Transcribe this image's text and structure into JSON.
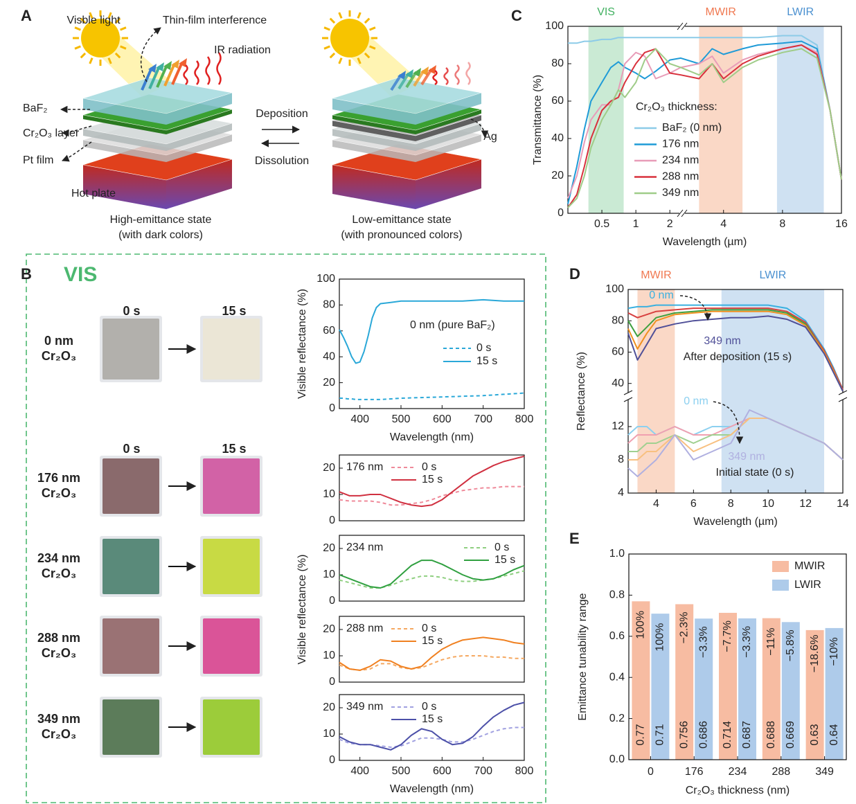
{
  "panel_labels": [
    "A",
    "B",
    "C",
    "D",
    "E"
  ],
  "diagram": {
    "visible_light": "Visble light",
    "thin_film": "Thin-film interference",
    "ir": "IR radiation",
    "baf2": "BaF₂",
    "cr2o3": "Cr₂O₃ layer",
    "pt": "Pt film",
    "hot_plate": "Hot plate",
    "deposition": "Deposition",
    "dissolution": "Dissolution",
    "ag": "Ag",
    "high_state": "High-emittance state",
    "high_note": "(with dark colors)",
    "low_state": "Low-emittance state",
    "low_note": "(with pronounced colors)"
  },
  "photos": {
    "title": "VIS",
    "times": [
      "0 s",
      "15 s"
    ],
    "samples": [
      {
        "thickness": "0 nm",
        "material": "Cr₂O₃"
      },
      {
        "thickness": "176 nm",
        "material": "Cr₂O₃"
      },
      {
        "thickness": "234 nm",
        "material": "Cr₂O₃"
      },
      {
        "thickness": "288 nm",
        "material": "Cr₂O₃"
      },
      {
        "thickness": "349 nm",
        "material": "Cr₂O₃"
      }
    ]
  },
  "panel_b_ylabel": "Visible reflectance (%)",
  "chart_data": [
    {
      "type": "line",
      "xscale": "log",
      "xlabel": "Wavelength (µm)",
      "ylabel": "Transmittance (%)",
      "xlim": [
        0.25,
        16
      ],
      "x_break": 2.5,
      "xticks": [
        0.5,
        1,
        2,
        4,
        8,
        16
      ],
      "ylim": [
        0,
        100
      ],
      "yticks": [
        0,
        20,
        40,
        60,
        80,
        100
      ],
      "bands": [
        {
          "label": "VIS",
          "range": [
            0.38,
            0.78
          ],
          "color": "#9fd8b0",
          "label_color": "#40b060"
        },
        {
          "label": "MWIR",
          "range": [
            3,
            5
          ],
          "color": "#f6b898",
          "label_color": "#f07850"
        },
        {
          "label": "LWIR",
          "range": [
            7.5,
            13
          ],
          "color": "#a8c8e8",
          "label_color": "#4a90d0"
        }
      ],
      "legend_title": "Cr₂O₃ thickness:",
      "x": [
        0.25,
        0.3,
        0.35,
        0.4,
        0.5,
        0.6,
        0.7,
        0.8,
        1,
        1.2,
        1.5,
        2,
        2.5,
        3,
        3.5,
        4,
        5,
        6,
        8,
        10,
        12,
        14,
        16
      ],
      "series": [
        {
          "name": "BaF₂ (0 nm)",
          "color": "#8ccbe8",
          "values": [
            91,
            91,
            92,
            92,
            93,
            93,
            94,
            94,
            94,
            94,
            94,
            94,
            94,
            94,
            94,
            94,
            94,
            94,
            95,
            95,
            90,
            55,
            18
          ]
        },
        {
          "name": "176 nm",
          "color": "#1f9bd7",
          "values": [
            5,
            25,
            45,
            60,
            70,
            78,
            81,
            78,
            75,
            72,
            76,
            82,
            83,
            80,
            88,
            85,
            88,
            90,
            91,
            92,
            88,
            55,
            18
          ]
        },
        {
          "name": "234 nm",
          "color": "#e89cb8",
          "values": [
            8,
            20,
            38,
            50,
            58,
            58,
            66,
            80,
            86,
            84,
            72,
            75,
            78,
            80,
            84,
            75,
            82,
            85,
            88,
            90,
            86,
            55,
            18
          ]
        },
        {
          "name": "288 nm",
          "color": "#d8303c",
          "values": [
            3,
            10,
            25,
            40,
            55,
            60,
            62,
            70,
            80,
            86,
            88,
            75,
            74,
            72,
            80,
            72,
            80,
            84,
            88,
            90,
            85,
            55,
            18
          ]
        },
        {
          "name": "349 nm",
          "color": "#9fcc88",
          "values": [
            3,
            8,
            20,
            35,
            50,
            58,
            66,
            62,
            70,
            82,
            88,
            80,
            78,
            74,
            80,
            70,
            78,
            82,
            86,
            88,
            83,
            55,
            18
          ]
        }
      ]
    },
    {
      "type": "line",
      "xlabel": "Wavelength (µm)",
      "ylabel": "Reflectance (%)",
      "xlim": [
        2.5,
        14
      ],
      "xticks": [
        4,
        6,
        8,
        10,
        12,
        14
      ],
      "ylim": [
        4,
        100
      ],
      "y_break": [
        15,
        35
      ],
      "yticks": [
        4,
        8,
        12,
        40,
        60,
        80,
        100
      ],
      "bands": [
        {
          "label": "MWIR",
          "range": [
            3,
            5
          ],
          "color": "#f6b898",
          "label_color": "#f07850"
        },
        {
          "label": "LWIR",
          "range": [
            7.5,
            13
          ],
          "color": "#a8c8e8",
          "label_color": "#4a90d0"
        }
      ],
      "annotations": [
        "0 nm",
        "349 nm",
        "After deposition (15 s)",
        "0 nm",
        "349 nm",
        "Initial state (0 s)"
      ],
      "x": [
        2.5,
        3,
        3.5,
        4,
        5,
        6,
        7,
        8,
        9,
        10,
        11,
        12,
        13,
        13.5,
        14
      ],
      "series": [
        {
          "color": "#3ab0e0",
          "values": [
            88,
            89,
            89,
            90,
            90,
            90,
            90,
            90,
            90,
            90,
            88,
            80,
            62,
            50,
            36
          ]
        },
        {
          "color": "#d84040",
          "values": [
            85,
            82,
            84,
            86,
            87,
            88,
            88,
            88,
            88,
            88,
            86,
            79,
            61,
            49,
            36
          ]
        },
        {
          "color": "#40a040",
          "values": [
            80,
            70,
            76,
            82,
            85,
            86,
            87,
            87,
            87,
            87,
            85,
            78,
            60,
            48,
            35
          ]
        },
        {
          "color": "#f09020",
          "values": [
            75,
            62,
            72,
            80,
            84,
            85,
            86,
            86,
            86,
            86,
            84,
            77,
            60,
            48,
            35
          ]
        },
        {
          "color": "#505098",
          "values": [
            72,
            55,
            65,
            75,
            78,
            80,
            81,
            82,
            82,
            83,
            81,
            76,
            59,
            47,
            35
          ]
        },
        {
          "color": "#8cd0f0",
          "values": [
            11,
            12,
            12,
            11,
            12,
            11,
            12,
            12,
            13,
            13,
            12,
            11,
            10,
            9,
            8
          ]
        },
        {
          "color": "#f0a0b0",
          "values": [
            10,
            11,
            11,
            11,
            12,
            11,
            11,
            12,
            13,
            13,
            12,
            11,
            10,
            9,
            8
          ]
        },
        {
          "color": "#a0d090",
          "values": [
            9,
            9,
            10,
            10,
            11,
            10,
            11,
            11,
            13,
            13,
            12,
            11,
            10,
            9,
            8
          ]
        },
        {
          "color": "#f8c080",
          "values": [
            8,
            8,
            9,
            9,
            11,
            9,
            10,
            11,
            13,
            13,
            12,
            11,
            10,
            9,
            8
          ]
        },
        {
          "color": "#b0b0e0",
          "values": [
            7,
            6,
            7,
            8,
            11,
            8,
            9,
            10,
            14,
            13,
            12,
            11,
            10,
            9,
            8
          ]
        }
      ]
    },
    {
      "type": "line",
      "xlabel": "Wavelength (nm)",
      "ylabel": "Visible reflectance (%)",
      "xlim": [
        350,
        800
      ],
      "xticks": [
        400,
        500,
        600,
        700,
        800
      ],
      "ylim": [
        0,
        100
      ],
      "yticks": [
        0,
        20,
        40,
        60,
        80,
        100
      ],
      "legend_title": "0 nm (pure BaF₂)",
      "x": [
        350,
        360,
        370,
        380,
        390,
        400,
        410,
        420,
        430,
        440,
        450,
        475,
        500,
        550,
        600,
        650,
        700,
        750,
        800
      ],
      "series": [
        {
          "name": "0 s",
          "color": "#2aa8d8",
          "dashed": true,
          "values": [
            8,
            8,
            7.5,
            7.5,
            7,
            7,
            7,
            7,
            7,
            7,
            7,
            7.5,
            8,
            8.5,
            9,
            9.5,
            10,
            11,
            12
          ]
        },
        {
          "name": "15 s",
          "color": "#2aa8d8",
          "values": [
            61,
            55,
            48,
            40,
            35,
            36,
            44,
            56,
            70,
            78,
            81,
            82,
            83,
            83,
            83,
            83,
            84,
            83,
            83
          ]
        }
      ]
    },
    {
      "type": "line",
      "label": "176 nm",
      "xlim": [
        350,
        800
      ],
      "ylim": [
        0,
        25
      ],
      "yticks": [
        0,
        10,
        20
      ],
      "x": [
        350,
        375,
        400,
        425,
        450,
        475,
        500,
        525,
        550,
        575,
        600,
        625,
        650,
        675,
        700,
        725,
        750,
        775,
        800
      ],
      "series": [
        {
          "name": "0 s",
          "color": "#ef8a9a",
          "dashed": true,
          "values": [
            8,
            7.5,
            7.5,
            7.5,
            7,
            6,
            6,
            6.5,
            7,
            8,
            9.5,
            10.5,
            11.5,
            12,
            12.5,
            12.5,
            13,
            13,
            13
          ]
        },
        {
          "name": "15 s",
          "color": "#d03040",
          "values": [
            11,
            9.5,
            9.5,
            10,
            10,
            8.5,
            7,
            6,
            5.5,
            6,
            8,
            11,
            14,
            17,
            19,
            21,
            22.5,
            23.5,
            24.5
          ]
        }
      ]
    },
    {
      "type": "line",
      "label": "234 nm",
      "xlim": [
        350,
        800
      ],
      "ylim": [
        0,
        25
      ],
      "yticks": [
        0,
        10,
        20
      ],
      "x": [
        350,
        375,
        400,
        425,
        450,
        475,
        500,
        525,
        550,
        575,
        600,
        625,
        650,
        675,
        700,
        725,
        750,
        775,
        800
      ],
      "series": [
        {
          "name": "0 s",
          "color": "#8fcf80",
          "dashed": true,
          "values": [
            8,
            7,
            6,
            5,
            5,
            6,
            7.5,
            8.5,
            9.5,
            9.5,
            9,
            8,
            7.5,
            7.5,
            8,
            8.5,
            9.5,
            10.5,
            11.5
          ]
        },
        {
          "name": "15 s",
          "color": "#30a040",
          "values": [
            10,
            8.5,
            7,
            5.5,
            5,
            6.5,
            10,
            13.5,
            15.5,
            15.5,
            14,
            12,
            10,
            8.5,
            8,
            8.5,
            10,
            12,
            13.5
          ]
        }
      ]
    },
    {
      "type": "line",
      "label": "288 nm",
      "xlim": [
        350,
        800
      ],
      "ylim": [
        0,
        25
      ],
      "yticks": [
        0,
        10,
        20
      ],
      "x": [
        350,
        375,
        400,
        425,
        450,
        475,
        500,
        525,
        550,
        575,
        600,
        625,
        650,
        675,
        700,
        725,
        750,
        775,
        800
      ],
      "series": [
        {
          "name": "0 s",
          "color": "#f5a860",
          "dashed": true,
          "values": [
            6.5,
            5,
            4.5,
            5,
            7,
            7,
            5.5,
            5,
            5.5,
            7,
            8.5,
            9.5,
            10,
            10,
            10,
            9.5,
            9.5,
            9,
            9
          ]
        },
        {
          "name": "15 s",
          "color": "#f08020",
          "values": [
            7.5,
            5,
            4.5,
            6,
            8.5,
            8,
            6,
            5,
            6,
            9.5,
            12.5,
            14.5,
            16,
            16.5,
            17,
            16.5,
            16,
            15,
            14.5
          ]
        }
      ]
    },
    {
      "type": "line",
      "label": "349 nm",
      "xlabel": "Wavelength (nm)",
      "xlim": [
        350,
        800
      ],
      "xticks": [
        400,
        500,
        600,
        700,
        800
      ],
      "ylim": [
        0,
        25
      ],
      "yticks": [
        0,
        10,
        20
      ],
      "x": [
        350,
        375,
        400,
        425,
        450,
        475,
        500,
        525,
        550,
        575,
        600,
        625,
        650,
        675,
        700,
        725,
        750,
        775,
        800
      ],
      "series": [
        {
          "name": "0 s",
          "color": "#a0a0e0",
          "dashed": true,
          "values": [
            8,
            6.5,
            6,
            6,
            5.5,
            5,
            5.5,
            7,
            8.5,
            8.5,
            8,
            7,
            7,
            8,
            9.5,
            11,
            12,
            12.5,
            12.5
          ]
        },
        {
          "name": "15 s",
          "color": "#4c50a8",
          "values": [
            9,
            7,
            6,
            6,
            5,
            4,
            6,
            9.5,
            12,
            11,
            8,
            6,
            6.5,
            9,
            13,
            16.5,
            19,
            21,
            22
          ]
        }
      ]
    },
    {
      "type": "bar",
      "xlabel": "Cr₂O₃ thickness (nm)",
      "ylabel": "Emittance tunability range",
      "categories": [
        "0",
        "176",
        "234",
        "288",
        "349"
      ],
      "ylim": [
        0,
        1
      ],
      "yticks": [
        {
          "value": 0,
          "label": "0.0"
        },
        0.2,
        0.4,
        0.6,
        0.8,
        {
          "value": 1,
          "label": "1.0"
        }
      ],
      "legend": "upper right",
      "series": [
        {
          "name": "MWIR",
          "color": "#f7bca2",
          "values": [
            0.77,
            0.756,
            0.714,
            0.688,
            0.63
          ],
          "change_labels": [
            "100%",
            "−2.3%",
            "−7.7%",
            "−11%",
            "−18.6%"
          ]
        },
        {
          "name": "LWIR",
          "color": "#aecbea",
          "values": [
            0.71,
            0.686,
            0.687,
            0.669,
            0.64
          ],
          "change_labels": [
            "100%",
            "−3.3%",
            "−3.3%",
            "−5.8%",
            "−10%"
          ]
        }
      ]
    }
  ]
}
